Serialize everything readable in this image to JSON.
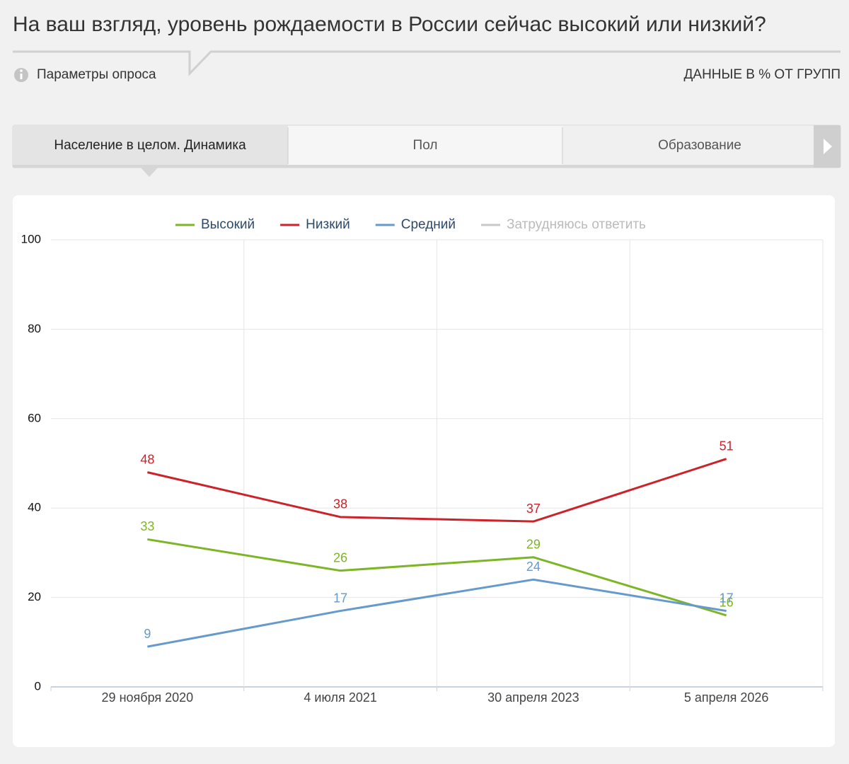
{
  "header": {
    "title": "На ваш взгляд, уровень рождаемости в России сейчас высокий или низкий?",
    "params": "Параметры опроса",
    "units": "ДАННЫЕ В % ОТ ГРУПП"
  },
  "tabs": [
    "Население в целом. Динамика",
    "Пол",
    "Образование"
  ],
  "chart_data": {
    "type": "line",
    "categories": [
      "29 ноября 2020",
      "4 июля 2021",
      "30 апреля 2023",
      "5 апреля 2026"
    ],
    "series": [
      {
        "name": "Высокий",
        "color": "#7cb526",
        "values": [
          33,
          26,
          29,
          16
        ]
      },
      {
        "name": "Низкий",
        "color": "#cc2229",
        "values": [
          48,
          38,
          37,
          51
        ]
      },
      {
        "name": "Средний",
        "color": "#6699cc",
        "values": [
          9,
          17,
          24,
          17
        ]
      },
      {
        "name": "Затрудняюсь ответить",
        "color": "#c8c8c8",
        "hidden": true,
        "values": [
          null,
          null,
          null,
          null
        ]
      }
    ],
    "ylim": [
      0,
      100
    ],
    "yticks": [
      0,
      20,
      40,
      60,
      80,
      100
    ],
    "grid": true,
    "legend": "top"
  }
}
